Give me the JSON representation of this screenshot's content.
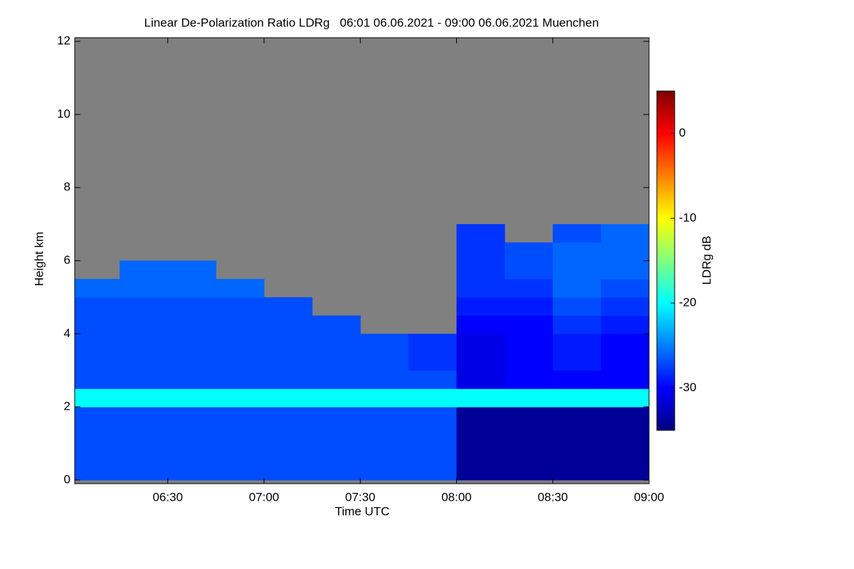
{
  "chart_data": {
    "type": "heatmap",
    "title": "Linear De-Polarization Ratio LDRg   06:01 06.06.2021 - 09:00 06.06.2021 Muenchen",
    "x_label": "Time UTC",
    "y_label": "Height km",
    "colorbar_label": "LDRg dB",
    "xlim": [
      361,
      540
    ],
    "xticks": [
      {
        "value": 390,
        "label": "06:30"
      },
      {
        "value": 420,
        "label": "07:00"
      },
      {
        "value": 450,
        "label": "07:30"
      },
      {
        "value": 480,
        "label": "08:00"
      },
      {
        "value": 510,
        "label": "08:30"
      },
      {
        "value": 540,
        "label": "09:00"
      }
    ],
    "ylim": [
      -0.1,
      12.1
    ],
    "yticks": [
      0,
      2,
      4,
      6,
      8,
      10,
      12
    ],
    "clim": [
      -35,
      5
    ],
    "cticks": [
      -30,
      -20,
      -10,
      0
    ],
    "colormap": "jet",
    "missing_color": "#808080",
    "x_edges": [
      361,
      375,
      390,
      405,
      420,
      435,
      450,
      465,
      480,
      495,
      510,
      525,
      540
    ],
    "y_edges": [
      0,
      0.5,
      1,
      1.5,
      2,
      2.5,
      3,
      3.5,
      4,
      4.5,
      5,
      5.5,
      6,
      6.5,
      7
    ],
    "z": [
      [
        -27,
        -27,
        -27,
        -27,
        -27,
        -27,
        -27,
        -27,
        -34,
        -34,
        -34,
        -34
      ],
      [
        -27,
        -27,
        -27,
        -27,
        -27,
        -27,
        -27,
        -27,
        -34,
        -34,
        -34,
        -34
      ],
      [
        -27,
        -27,
        -27,
        -27,
        -27,
        -27,
        -27,
        -27,
        -34,
        -34,
        -34,
        -34
      ],
      [
        -27,
        -27,
        -27,
        -27,
        -27,
        -27,
        -27,
        -27,
        -34,
        -34,
        -34,
        -34
      ],
      [
        -20,
        -20,
        -20,
        -20,
        -20,
        -20,
        -20,
        -20,
        -20,
        -20,
        -20,
        -20
      ],
      [
        -27,
        -27,
        -27,
        -27,
        -27,
        -27,
        -27,
        -27,
        -31,
        -30,
        -30,
        -30
      ],
      [
        -27,
        -27,
        -27,
        -27,
        -27,
        -27,
        -27,
        -28,
        -31,
        -30,
        -29,
        -30
      ],
      [
        -27,
        -27,
        -27,
        -27,
        -27,
        -27,
        -27,
        -28,
        -31,
        -30,
        -29,
        -30
      ],
      [
        -27,
        -27,
        -27,
        -27,
        -27,
        -27,
        null,
        null,
        -30,
        -30,
        -28,
        -29
      ],
      [
        -27,
        -27,
        -27,
        -27,
        -27,
        null,
        null,
        null,
        -29,
        -29,
        -27,
        -28
      ],
      [
        -26,
        -26,
        -26,
        -26,
        null,
        null,
        null,
        null,
        -28,
        -28,
        -26,
        -27
      ],
      [
        null,
        -26,
        -26,
        null,
        null,
        null,
        null,
        null,
        -28,
        -27,
        -26,
        -26
      ],
      [
        null,
        null,
        null,
        null,
        null,
        null,
        null,
        null,
        -28,
        -27,
        -26,
        -26
      ],
      [
        null,
        null,
        null,
        null,
        null,
        null,
        null,
        null,
        -28,
        null,
        -27,
        -26
      ]
    ]
  }
}
